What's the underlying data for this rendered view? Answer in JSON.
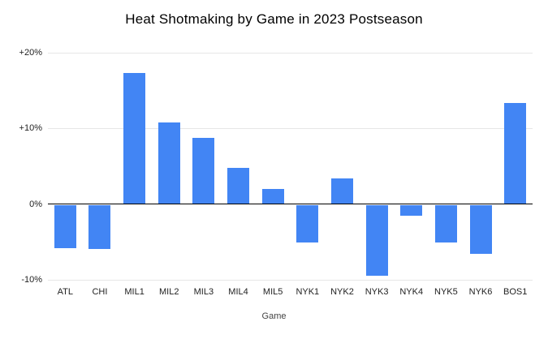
{
  "title": "Heat Shotmaking by Game in 2023 Postseason",
  "chart_data": {
    "type": "bar",
    "title": "Heat Shotmaking by Game in 2023 Postseason",
    "xlabel": "Game",
    "ylabel": "",
    "categories": [
      "ATL",
      "CHI",
      "MIL1",
      "MIL2",
      "MIL3",
      "MIL4",
      "MIL5",
      "NYK1",
      "NYK2",
      "NYK3",
      "NYK4",
      "NYK5",
      "NYK6",
      "BOS1"
    ],
    "values": [
      -5.7,
      -5.8,
      17.3,
      10.8,
      8.7,
      4.8,
      2.0,
      -5.0,
      3.4,
      -9.4,
      -1.4,
      -5.0,
      -6.5,
      13.4
    ],
    "value_unit": "%",
    "ylim": [
      -10,
      20
    ],
    "y_ticks": [
      {
        "value": 20,
        "label": "+20%"
      },
      {
        "value": 10,
        "label": "+10%"
      },
      {
        "value": 0,
        "label": "0%"
      },
      {
        "value": -10,
        "label": "-10%"
      }
    ],
    "grid": true,
    "legend": "none",
    "bar_color": "#4285f4",
    "gridline_color": "#e6e6e6",
    "zero_line_color": "#000000"
  }
}
